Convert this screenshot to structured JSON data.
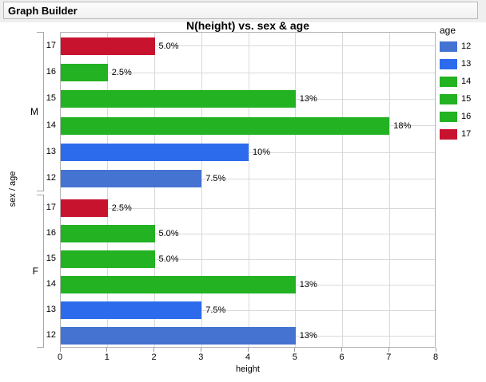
{
  "window": {
    "title": "Graph Builder"
  },
  "colors": {
    "age12_blue": "#4573d2",
    "age13_blue": "#2c6cec",
    "green": "#22b222",
    "red": "#c8132f",
    "gridline": "#d9d9d9",
    "plot_border": "#b3b3b3",
    "axis": "#9b9b9b",
    "bracket": "#a8a8a8",
    "header_bg": "#efefef"
  },
  "chart_data": {
    "type": "bar",
    "orientation": "horizontal",
    "title": "N(height) vs. sex & age",
    "xlabel": "height",
    "ylabel": "sex / age",
    "xlim": [
      0,
      8
    ],
    "x_ticks": [
      "0",
      "1",
      "2",
      "3",
      "4",
      "5",
      "6",
      "7",
      "8"
    ],
    "grid": true,
    "legend": {
      "title": "age",
      "position": "right",
      "entries": [
        {
          "label": "12",
          "color": "#4573d2"
        },
        {
          "label": "13",
          "color": "#2c6cec"
        },
        {
          "label": "14",
          "color": "#22b222"
        },
        {
          "label": "15",
          "color": "#22b222"
        },
        {
          "label": "16",
          "color": "#22b222"
        },
        {
          "label": "17",
          "color": "#c8132f"
        }
      ]
    },
    "groups": [
      {
        "label": "M",
        "rows": [
          {
            "age": "17",
            "value": 2,
            "pct_label": "5.0%",
            "color": "#c8132f"
          },
          {
            "age": "16",
            "value": 1,
            "pct_label": "2.5%",
            "color": "#22b222"
          },
          {
            "age": "15",
            "value": 5,
            "pct_label": "13%",
            "color": "#22b222"
          },
          {
            "age": "14",
            "value": 7,
            "pct_label": "18%",
            "color": "#22b222"
          },
          {
            "age": "13",
            "value": 4,
            "pct_label": "10%",
            "color": "#2c6cec"
          },
          {
            "age": "12",
            "value": 3,
            "pct_label": "7.5%",
            "color": "#4573d2"
          }
        ]
      },
      {
        "label": "F",
        "rows": [
          {
            "age": "17",
            "value": 1,
            "pct_label": "2.5%",
            "color": "#c8132f"
          },
          {
            "age": "16",
            "value": 2,
            "pct_label": "5.0%",
            "color": "#22b222"
          },
          {
            "age": "15",
            "value": 2,
            "pct_label": "5.0%",
            "color": "#22b222"
          },
          {
            "age": "14",
            "value": 5,
            "pct_label": "13%",
            "color": "#22b222"
          },
          {
            "age": "13",
            "value": 3,
            "pct_label": "7.5%",
            "color": "#2c6cec"
          },
          {
            "age": "12",
            "value": 5,
            "pct_label": "13%",
            "color": "#4573d2"
          }
        ]
      }
    ]
  }
}
